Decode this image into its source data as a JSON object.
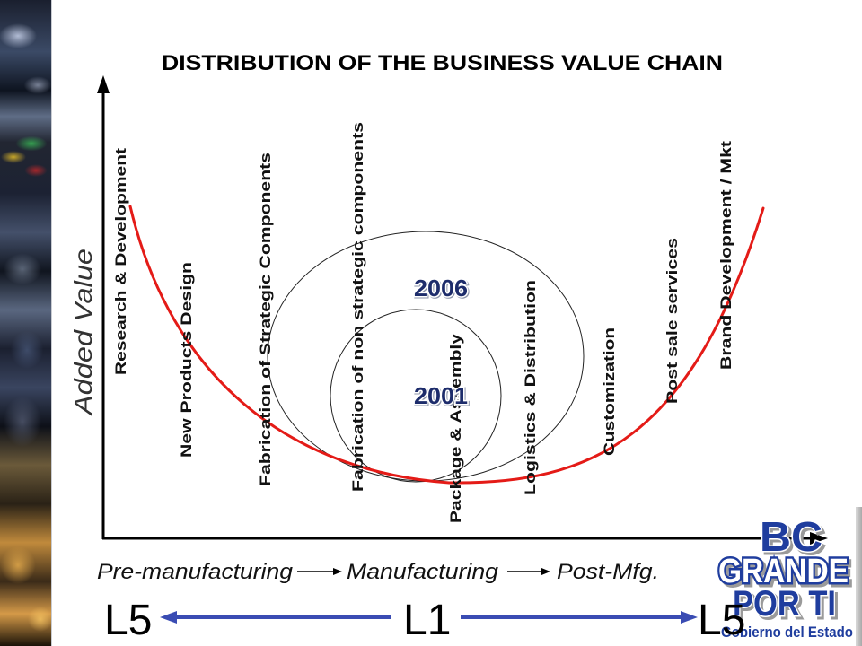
{
  "slide": {
    "title": "DISTRIBUTION OF THE BUSINESS VALUE CHAIN",
    "y_axis_label": "Added Value",
    "value_chain_stages": [
      "Research & Development",
      "New Products Design",
      "Fabrication of Strategic Components",
      "Fabrication of non strategic components",
      "Package & Assembly",
      "Logistics & Distribution",
      "Customization",
      "Post sale services",
      "Brand Development / Mkt"
    ],
    "ellipse_labels": {
      "outer": "2006",
      "inner": "2001"
    },
    "phases": [
      "Pre-manufacturing",
      "Manufacturing",
      "Post-Mfg."
    ],
    "levels": [
      "L5",
      "L1",
      "L5"
    ]
  },
  "logo": {
    "line1": "BC",
    "line2": "GRANDE",
    "line3": "POR TI",
    "tagline": "Gobierno del Estado"
  },
  "colors": {
    "value_curve": "#e41b17",
    "level_arrows": "#3a4cb3",
    "year_labels": "#1d2c6b",
    "logo_blue": "#1f3d9e"
  }
}
